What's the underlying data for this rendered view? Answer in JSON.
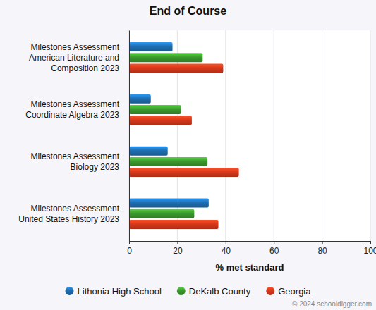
{
  "chart_data": {
    "type": "bar",
    "orientation": "horizontal",
    "title": "End of Course",
    "x_label": "% met standard",
    "caption": "© 2024 schooldigger.com",
    "categories": [
      "Milestones Assessment American Literature and Composition 2023",
      "Milestones Assessment Coordinate Algebra 2023",
      "Milestones Assessment Biology 2023",
      "Milestones Assessment United States History 2023"
    ],
    "series": [
      {
        "name": "Lithonia High School",
        "color": "#1f6fb2",
        "values": [
          18,
          9,
          16,
          33
        ]
      },
      {
        "name": "DeKalb County",
        "color": "#3c9a2e",
        "values": [
          30.5,
          21.5,
          32.5,
          27
        ]
      },
      {
        "name": "Georgia",
        "color": "#d8391b",
        "values": [
          39,
          26,
          45.5,
          37
        ]
      }
    ],
    "xlim": [
      0,
      100
    ],
    "xticks": [
      0,
      20,
      40,
      60,
      80,
      100
    ],
    "grid": true,
    "legend": "bottom"
  }
}
